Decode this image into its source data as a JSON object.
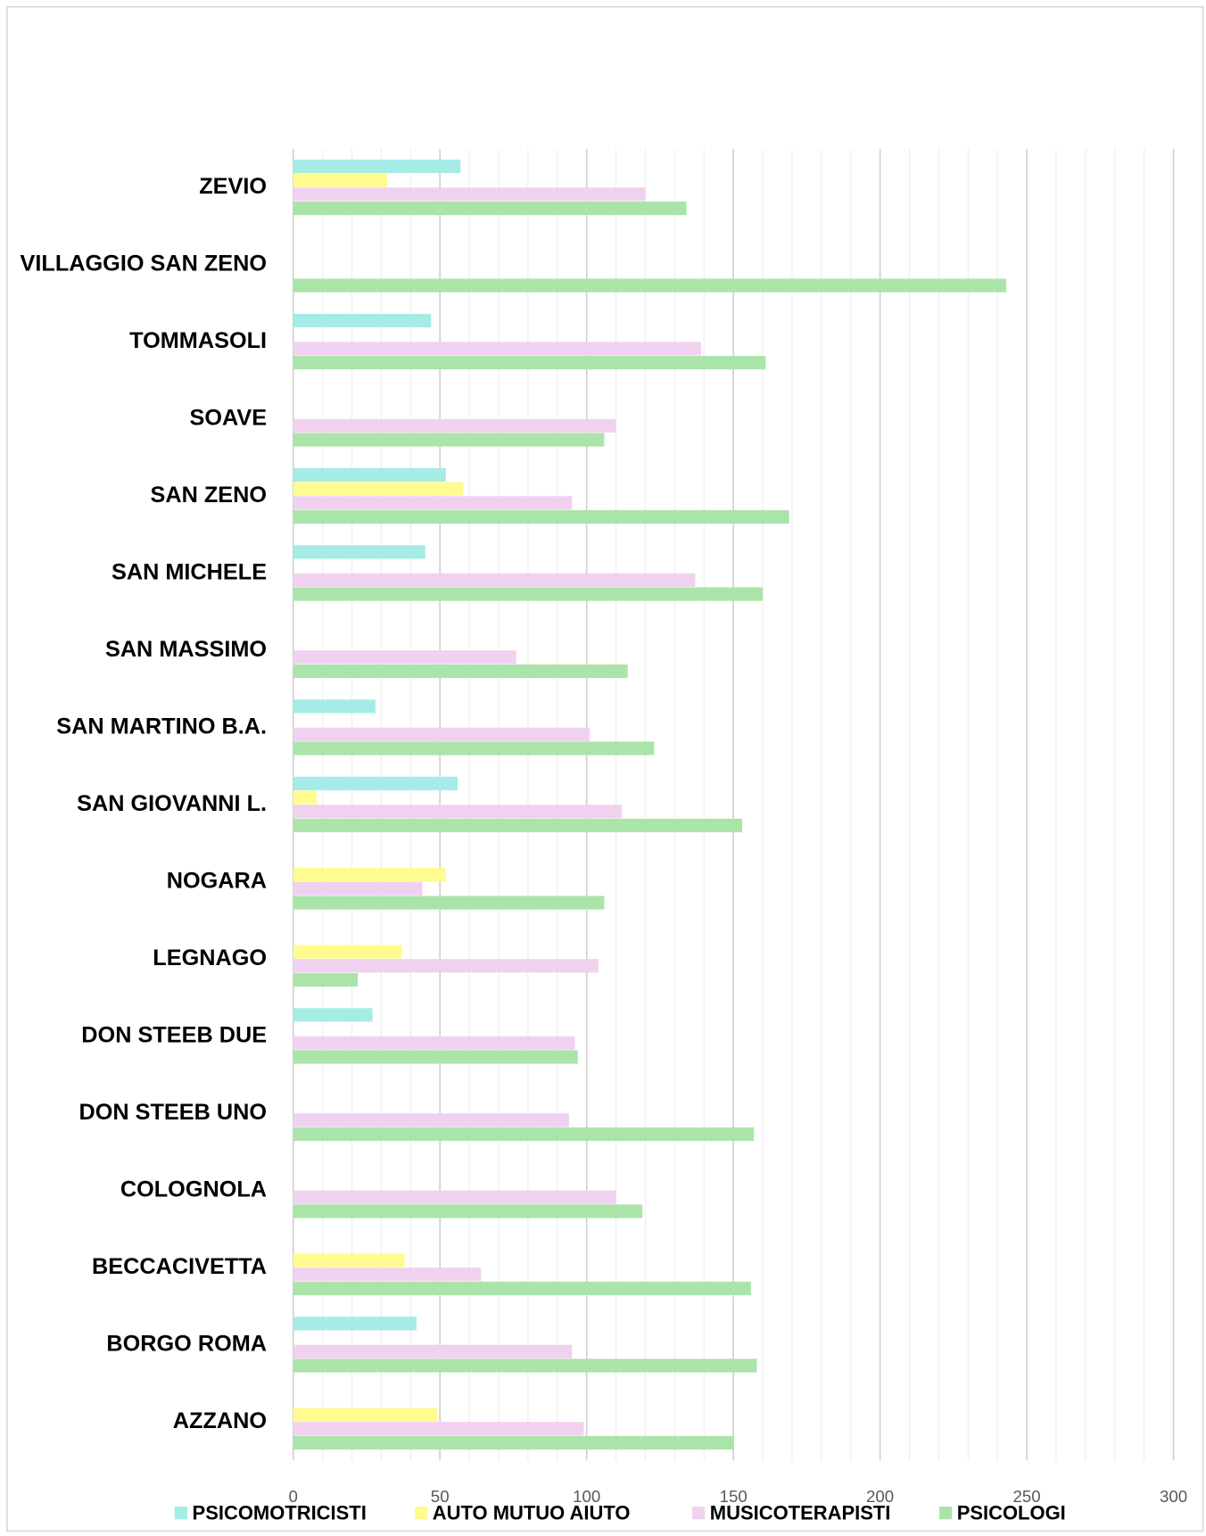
{
  "chart_data": {
    "type": "bar",
    "orientation": "horizontal",
    "categories": [
      "ZEVIO",
      "VILLAGGIO SAN ZENO",
      "TOMMASOLI",
      "SOAVE",
      "SAN ZENO",
      "SAN MICHELE",
      "SAN MASSIMO",
      "SAN MARTINO B.A.",
      "SAN GIOVANNI L.",
      "NOGARA",
      "LEGNAGO",
      "DON STEEB DUE",
      "DON STEEB  UNO",
      "COLOGNOLA",
      "BECCACIVETTA",
      "BORGO ROMA",
      "AZZANO"
    ],
    "series": [
      {
        "name": "PSICOMOTRICISTI",
        "color": "#a5ece6",
        "values": [
          57,
          null,
          47,
          null,
          52,
          45,
          null,
          28,
          56,
          null,
          null,
          27,
          null,
          null,
          null,
          42,
          null
        ]
      },
      {
        "name": "AUTO MUTUO AIUTO",
        "color": "#fffb8f",
        "values": [
          32,
          null,
          null,
          null,
          58,
          null,
          null,
          null,
          8,
          52,
          37,
          null,
          null,
          null,
          38,
          null,
          49
        ]
      },
      {
        "name": "MUSICOTERAPISTI",
        "color": "#f0d2f0",
        "values": [
          120,
          null,
          139,
          110,
          95,
          137,
          76,
          101,
          112,
          44,
          104,
          96,
          94,
          110,
          64,
          95,
          99
        ]
      },
      {
        "name": "PSICOLOGI",
        "color": "#abe4a9",
        "values": [
          134,
          243,
          161,
          106,
          169,
          160,
          114,
          123,
          153,
          106,
          22,
          97,
          157,
          119,
          156,
          158,
          150
        ]
      }
    ],
    "xlim": [
      0,
      300
    ],
    "xticks": [
      0,
      50,
      100,
      150,
      200,
      250,
      300
    ],
    "grid": true,
    "legend": "bottom"
  }
}
